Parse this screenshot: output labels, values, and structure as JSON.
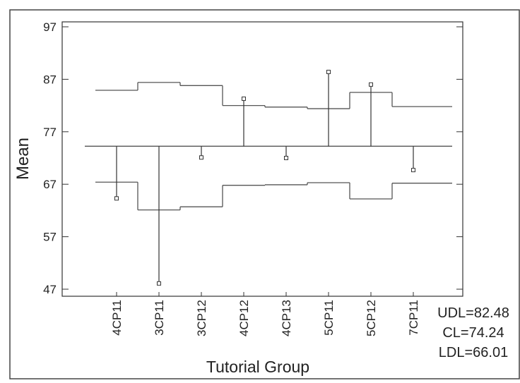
{
  "chart_data": {
    "type": "anom",
    "x_label": "Tutorial Group",
    "y_label": "Mean",
    "categories": [
      "4CP11",
      "3CP11",
      "3CP12",
      "4CP12",
      "4CP13",
      "5CP11",
      "5CP12",
      "7CP11"
    ],
    "values": [
      64.3,
      48.1,
      72.1,
      83.3,
      72.0,
      88.4,
      86.0,
      69.7
    ],
    "upper_limits": [
      84.9,
      86.4,
      85.8,
      82.0,
      81.7,
      81.4,
      84.5,
      81.8
    ],
    "lower_limits": [
      67.4,
      62.1,
      62.7,
      66.8,
      66.9,
      67.3,
      64.2,
      67.2
    ],
    "center_line": 74.24,
    "limit_labels": [
      "UDL=82.48",
      "CL=74.24",
      "LDL=66.01"
    ],
    "ylim": [
      47,
      97
    ],
    "yticks": [
      47,
      57,
      67,
      77,
      87,
      97
    ],
    "color": "#333333",
    "limit_color": "#555555"
  }
}
